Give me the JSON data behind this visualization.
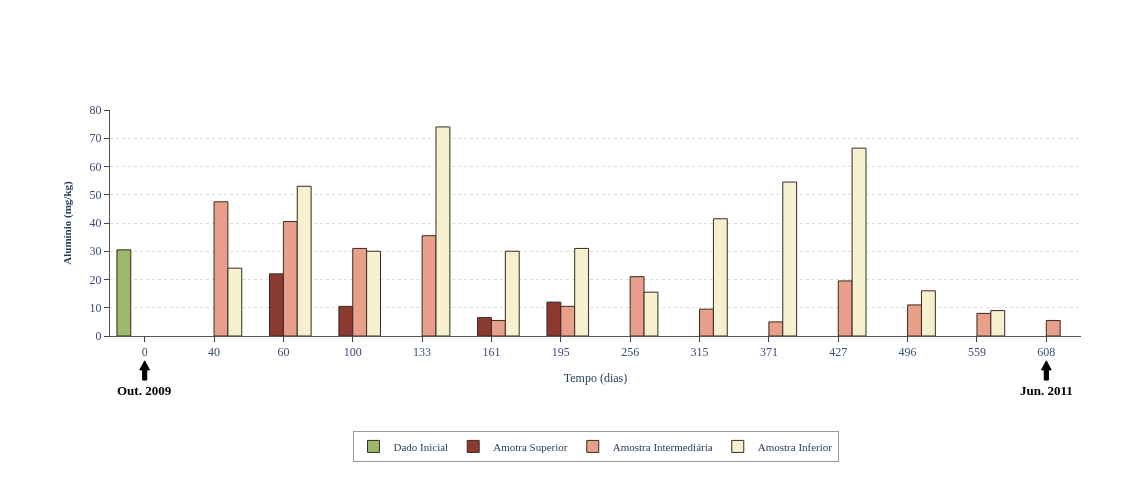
{
  "chart_data": {
    "type": "bar",
    "xlabel": "Tempo (dias)",
    "ylabel": "Alumínio (mg/kg)",
    "categories": [
      "0",
      "40",
      "60",
      "100",
      "133",
      "161",
      "195",
      "256",
      "315",
      "371",
      "427",
      "496",
      "559",
      "608"
    ],
    "series": [
      {
        "name": "Dado Inicial",
        "color": "#9cb86a",
        "values": [
          30.5,
          null,
          null,
          null,
          null,
          null,
          null,
          null,
          null,
          null,
          null,
          null,
          null,
          null
        ]
      },
      {
        "name": "Amotra Superior",
        "color": "#8b3a32",
        "values": [
          null,
          null,
          22,
          10.5,
          null,
          6.5,
          12,
          null,
          null,
          null,
          null,
          null,
          null,
          null
        ]
      },
      {
        "name": "Amostra Intermediária",
        "color": "#e8a08a",
        "values": [
          null,
          47.5,
          40.5,
          31,
          35.5,
          5.5,
          10.5,
          21,
          9.5,
          5,
          19.5,
          11,
          8,
          5.5
        ]
      },
      {
        "name": "Amostra Inferior",
        "color": "#f5f0d0",
        "values": [
          null,
          24,
          53,
          30,
          74,
          30,
          31,
          15.5,
          41.5,
          54.5,
          66.5,
          16,
          9,
          null
        ]
      }
    ],
    "ylim": [
      0,
      80
    ],
    "yticks": [
      0,
      10,
      20,
      30,
      40,
      50,
      60,
      70,
      80
    ],
    "grid": "y",
    "legend": "bottom",
    "annotations": [
      "Out. 2009",
      "Jun. 2011"
    ]
  }
}
